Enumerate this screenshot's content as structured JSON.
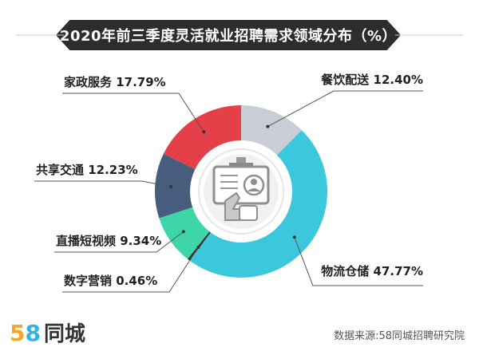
{
  "title": "2020年前三季度灵活就业招聘需求领域分布（%）",
  "source": "数据来源:58同城招聘研究院",
  "brand": {
    "digit1": "5",
    "digit2": "8",
    "name": "同城"
  },
  "chart_data": {
    "type": "pie",
    "title": "2020年前三季度灵活就业招聘需求领域分布（%）",
    "unit": "%",
    "slices": [
      {
        "name": "餐饮配送",
        "value": 12.4,
        "label": "12.40%",
        "color": "#c9cdd6"
      },
      {
        "name": "物流仓储",
        "value": 47.77,
        "label": "47.77%",
        "color": "#3cc8dc"
      },
      {
        "name": "数字营销",
        "value": 0.46,
        "label": "0.46%",
        "color": "#2a2a2a"
      },
      {
        "name": "直播短视频",
        "value": 9.34,
        "label": "9.34%",
        "color": "#3ed6a6"
      },
      {
        "name": "共享交通",
        "value": 12.23,
        "label": "12.23%",
        "color": "#475d7e"
      },
      {
        "name": "家政服务",
        "value": 17.79,
        "label": "17.79%",
        "color": "#e5404a"
      }
    ]
  }
}
